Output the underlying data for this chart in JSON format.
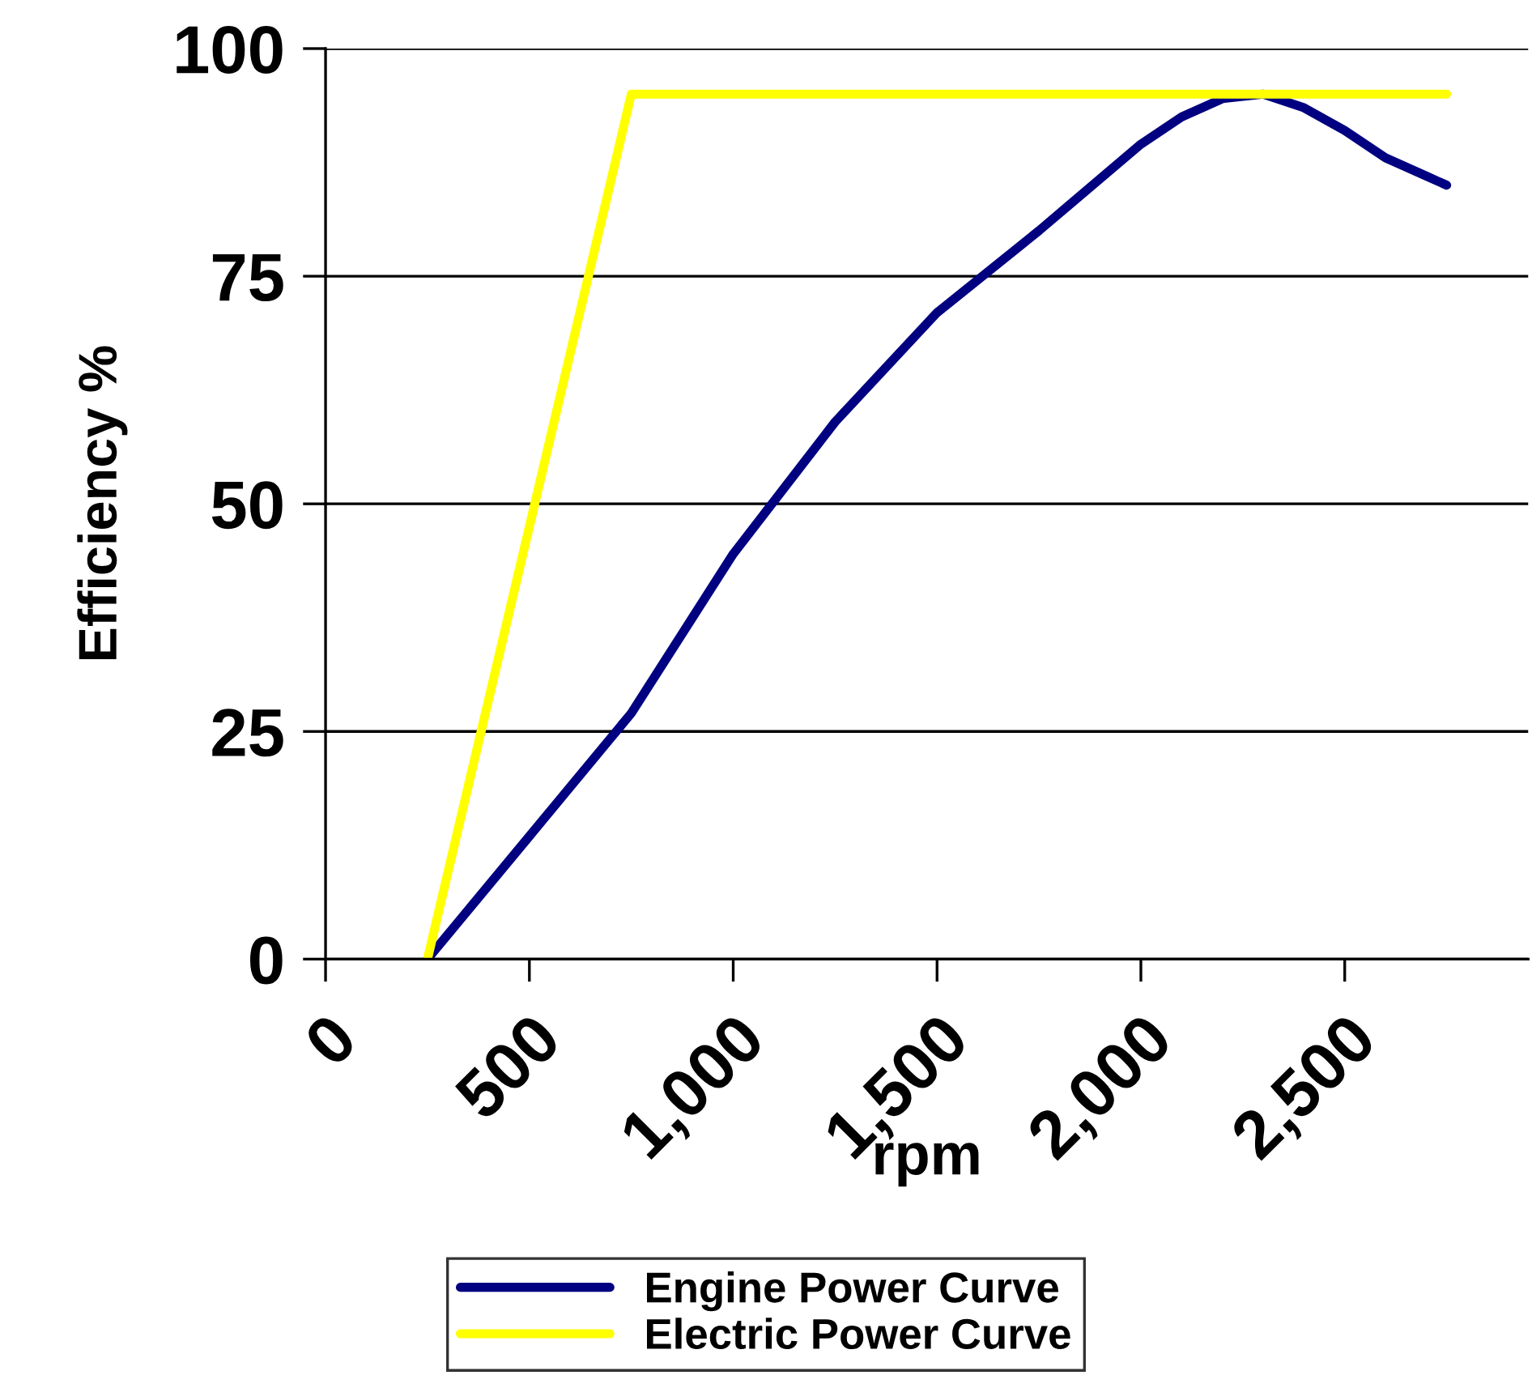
{
  "chart_data": {
    "type": "line",
    "xlabel": "rpm",
    "ylabel": "Efficiency %",
    "xlim": [
      0,
      2950
    ],
    "xticks": [
      {
        "value": 0,
        "label": "0"
      },
      {
        "value": 500,
        "label": "500"
      },
      {
        "value": 1000,
        "label": "1,000"
      },
      {
        "value": 1500,
        "label": "1,500"
      },
      {
        "value": 2000,
        "label": "2,000"
      },
      {
        "value": 2500,
        "label": "2,500"
      }
    ],
    "ylim": [
      0,
      100
    ],
    "yticks": [
      0,
      25,
      50,
      75,
      100
    ],
    "grid": "y",
    "legend": "bottom",
    "marker": "none",
    "line_style": "solid",
    "series": [
      {
        "name": "Engine Power Curve",
        "color": "#000080",
        "x": [
          250,
          500,
          750,
          1000,
          1250,
          1500,
          1750,
          2000,
          2100,
          2200,
          2300,
          2400,
          2500,
          2600,
          2700,
          2750
        ],
        "values": [
          0,
          13.5,
          27,
          44.5,
          59,
          71,
          80,
          89.5,
          92.5,
          94.5,
          95,
          93.5,
          91,
          88,
          86,
          85
        ]
      },
      {
        "name": "Electric Power Curve",
        "color": "#ffff00",
        "x": [
          250,
          750,
          2750
        ],
        "values": [
          0,
          95,
          95
        ]
      }
    ]
  }
}
